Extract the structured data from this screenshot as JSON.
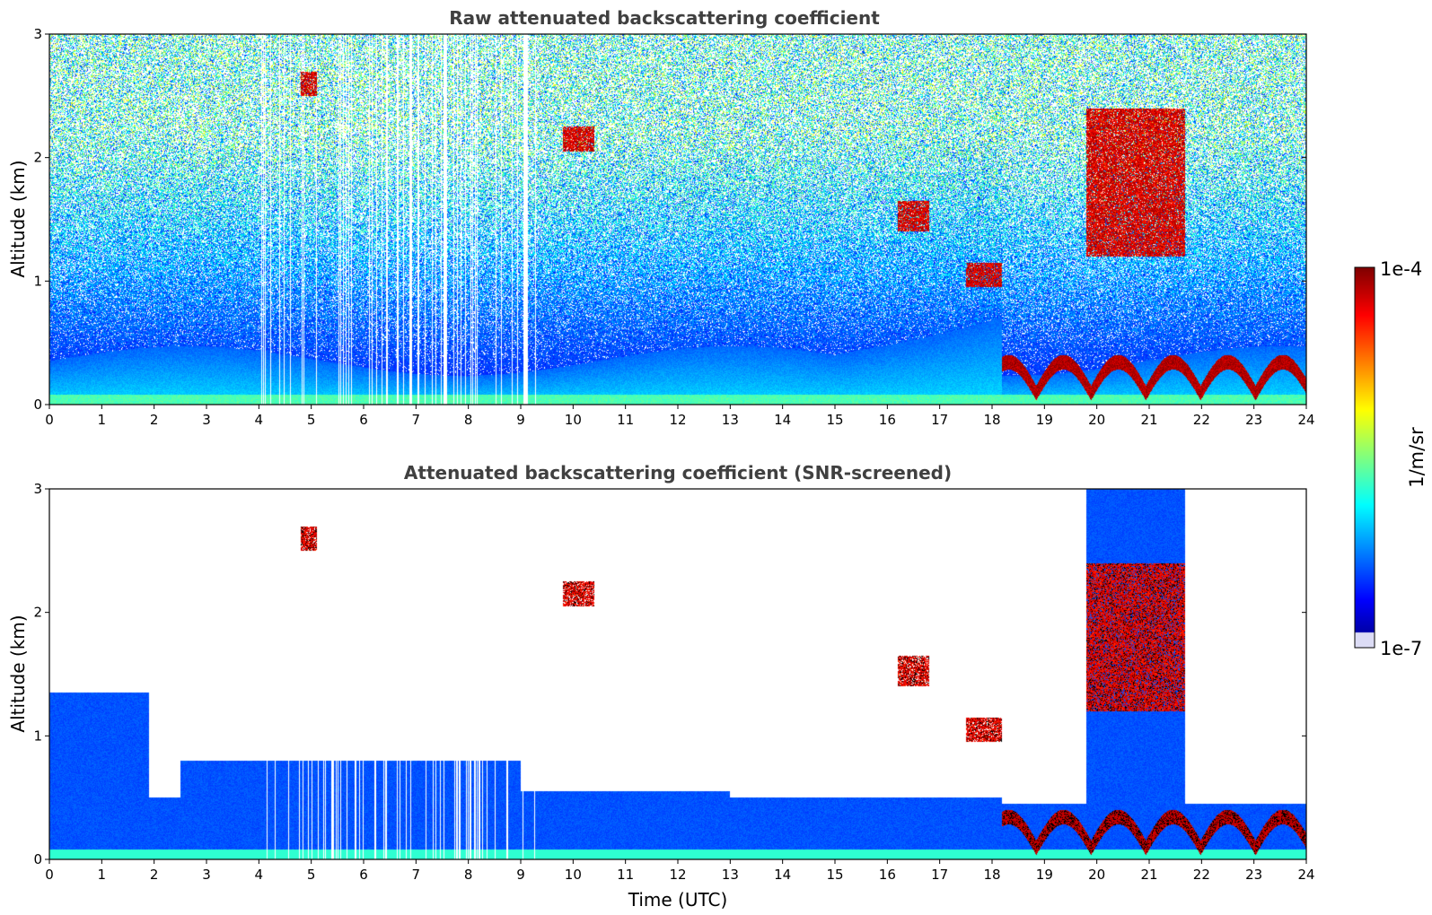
{
  "chart_data": [
    {
      "type": "heatmap",
      "title": "Raw attenuated backscattering coefficient",
      "xlabel": "",
      "ylabel": "Altitude (km)",
      "xlim": [
        0,
        24
      ],
      "ylim": [
        0,
        3
      ],
      "xticks": [
        0,
        1,
        2,
        3,
        4,
        5,
        6,
        7,
        8,
        9,
        10,
        11,
        12,
        13,
        14,
        15,
        16,
        17,
        18,
        19,
        20,
        21,
        22,
        23,
        24
      ],
      "yticks": [
        0,
        1,
        2,
        3
      ],
      "screened": false,
      "features": [
        {
          "kind": "cloud",
          "t": [
            4.8,
            5.1
          ],
          "z": [
            2.5,
            2.7
          ]
        },
        {
          "kind": "cloud",
          "t": [
            9.8,
            10.4
          ],
          "z": [
            2.05,
            2.25
          ]
        },
        {
          "kind": "cloud",
          "t": [
            16.2,
            16.8
          ],
          "z": [
            1.4,
            1.65
          ]
        },
        {
          "kind": "cloud",
          "t": [
            17.5,
            18.2
          ],
          "z": [
            0.95,
            1.15
          ]
        },
        {
          "kind": "cloud",
          "t": [
            19.8,
            21.7
          ],
          "z": [
            1.2,
            2.4
          ]
        },
        {
          "kind": "low_cloud",
          "t": [
            18.2,
            24.0
          ],
          "z": [
            0.0,
            0.45
          ]
        }
      ]
    },
    {
      "type": "heatmap",
      "title": "Attenuated backscattering coefficient (SNR-screened)",
      "xlabel": "Time (UTC)",
      "ylabel": "Altitude (km)",
      "xlim": [
        0,
        24
      ],
      "ylim": [
        0,
        3
      ],
      "xticks": [
        0,
        1,
        2,
        3,
        4,
        5,
        6,
        7,
        8,
        9,
        10,
        11,
        12,
        13,
        14,
        15,
        16,
        17,
        18,
        19,
        20,
        21,
        22,
        23,
        24
      ],
      "yticks": [
        0,
        1,
        2,
        3
      ],
      "screened": true,
      "features": [
        {
          "kind": "cloud",
          "t": [
            4.8,
            5.1
          ],
          "z": [
            2.5,
            2.7
          ]
        },
        {
          "kind": "cloud",
          "t": [
            9.8,
            10.4
          ],
          "z": [
            2.05,
            2.25
          ]
        },
        {
          "kind": "cloud",
          "t": [
            16.2,
            16.8
          ],
          "z": [
            1.4,
            1.65
          ]
        },
        {
          "kind": "cloud",
          "t": [
            17.5,
            18.2
          ],
          "z": [
            0.95,
            1.15
          ]
        },
        {
          "kind": "cloud",
          "t": [
            19.8,
            21.7
          ],
          "z": [
            1.2,
            2.4
          ]
        },
        {
          "kind": "low_cloud",
          "t": [
            18.2,
            24.0
          ],
          "z": [
            0.0,
            0.45
          ]
        }
      ]
    }
  ],
  "colorbar": {
    "label": "1/m/sr",
    "max_label": "1e-4",
    "min_label": "1e-7",
    "scale": "log",
    "range": [
      1e-07,
      0.0001
    ],
    "colormap": "jet"
  }
}
